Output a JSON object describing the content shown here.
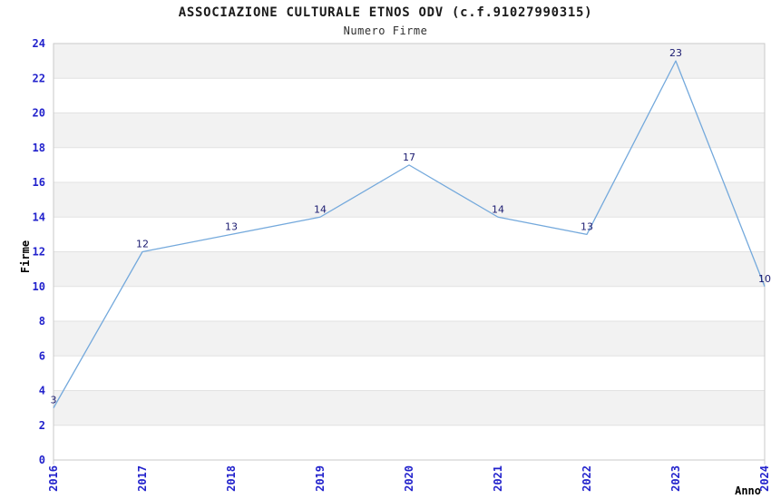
{
  "header": {
    "title": "ASSOCIAZIONE CULTURALE ETNOS ODV (c.f.91027990315)",
    "subtitle": "Numero Firme"
  },
  "chart_data": {
    "type": "line",
    "title": "ASSOCIAZIONE CULTURALE ETNOS ODV (c.f.91027990315)",
    "subtitle": "Numero Firme",
    "xlabel": "Anno",
    "ylabel": "Firme",
    "x": [
      2016,
      2017,
      2018,
      2019,
      2020,
      2021,
      2022,
      2023,
      2024
    ],
    "values": [
      3,
      12,
      13,
      14,
      17,
      14,
      13,
      23,
      10
    ],
    "ylim": [
      0,
      24
    ],
    "y_tick_step": 2,
    "x_tick_labels": [
      "2016",
      "2017",
      "2018",
      "2019",
      "2020",
      "2021",
      "2022",
      "2023",
      "2024"
    ],
    "point_labels": [
      "3",
      "12",
      "13",
      "14",
      "17",
      "14",
      "13",
      "23",
      "10"
    ],
    "grid": "horizontal-alternating-bands",
    "legend_position": "none",
    "colors": {
      "line": "#74A9DC",
      "tick_label": "#2222CC",
      "point_label": "#1A1A70",
      "band_fill": "#F2F2F2",
      "grid_line": "#E2E2E2",
      "plot_border": "#C9C9C9",
      "title_text": "#1A1A1A",
      "axis_title_text": "#000000"
    }
  }
}
